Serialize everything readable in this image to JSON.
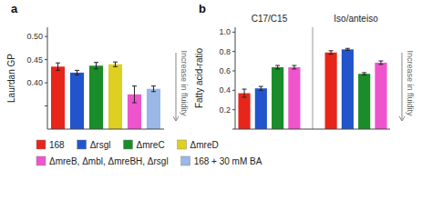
{
  "chart_data": [
    {
      "type": "bar",
      "title": "a",
      "ylabel": "Laurdan GP",
      "categories": [
        "168",
        "Δrsgl",
        "ΔmreC",
        "ΔmreD",
        "ΔmreB, Δmbl, ΔmreBH, Δrsgl",
        "168 + 30 mM BA"
      ],
      "values": [
        0.435,
        0.422,
        0.437,
        0.44,
        0.375,
        0.387
      ],
      "errors": [
        0.008,
        0.005,
        0.007,
        0.005,
        0.018,
        0.006
      ],
      "colors": [
        "#e8251a",
        "#2255cc",
        "#1a8c2a",
        "#ddd020",
        "#ee55cc",
        "#99b8e8"
      ],
      "ylim": [
        0.3,
        0.52
      ],
      "yticks": [
        {
          "value": 0.35,
          "label": null
        },
        {
          "value": 0.4,
          "label": "0.40"
        },
        {
          "value": 0.45,
          "label": "0.45"
        },
        {
          "value": 0.5,
          "label": "0.50"
        }
      ],
      "annotation": "Increase in fluidity",
      "tick_labels": "y",
      "grid": false,
      "legend": "bottom"
    },
    {
      "type": "bar",
      "title": "b",
      "ylabel": "Fatty acid-ratio",
      "categories": [
        "C17/C15",
        "Iso/anteiso"
      ],
      "series": [
        {
          "color": "#e8251a",
          "values": [
            0.37,
            0.79
          ],
          "errors": [
            0.042,
            0.018
          ]
        },
        {
          "color": "#2255cc",
          "values": [
            0.42,
            0.822
          ],
          "errors": [
            0.02,
            0.01
          ]
        },
        {
          "color": "#1a8c2a",
          "values": [
            0.638,
            0.57
          ],
          "errors": [
            0.018,
            0.012
          ]
        },
        {
          "color": "#ee55cc",
          "values": [
            0.638,
            0.685
          ],
          "errors": [
            0.018,
            0.018
          ]
        }
      ],
      "ylim": [
        0.0,
        1.05
      ],
      "yticks": [
        {
          "value": 0.0,
          "label": null
        },
        0.2,
        0.4,
        0.6,
        0.8,
        {
          "value": 1.0,
          "label": "1.0"
        }
      ],
      "annotation": "Increase in fluidity",
      "grid": false
    }
  ]
}
